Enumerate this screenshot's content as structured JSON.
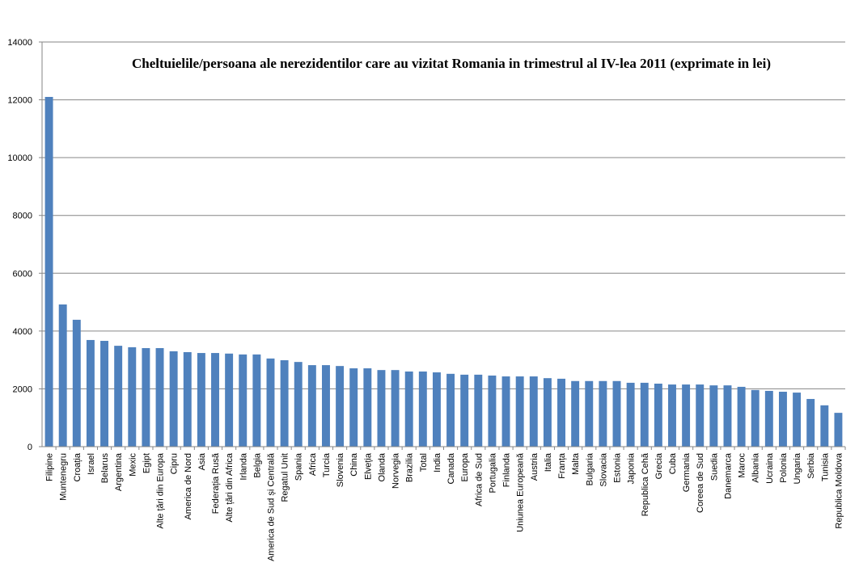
{
  "chart_data": {
    "type": "bar",
    "title": "Cheltuielile/persoana ale nerezidentilor care au vizitat Romania in trimestrul al IV-lea 2011 (exprimate in lei)",
    "xlabel": "",
    "ylabel": "",
    "ylim": [
      0,
      14000
    ],
    "yticks": [
      0,
      2000,
      4000,
      6000,
      8000,
      10000,
      12000,
      14000
    ],
    "grid": true,
    "legend": "none",
    "bar_color": "#4f81bd",
    "categories": [
      "Filipine",
      "Muntenegru",
      "Croația",
      "Israel",
      "Belarus",
      "Argentina",
      "Mexic",
      "Egipt",
      "Alte țări din Europa",
      "Cipru",
      "America de Nord",
      "Asia",
      "Federația Rusă",
      "Alte țări din Africa",
      "Irlanda",
      "Belgia",
      "America de Sud și Centrală",
      "Regatul Unit",
      "Spania",
      "Africa",
      "Turcia",
      "Slovenia",
      "China",
      "Elveția",
      "Olanda",
      "Norvegia",
      "Brazilia",
      "Total",
      "India",
      "Canada",
      "Europa",
      "Africa de Sud",
      "Portugalia",
      "Finlanda",
      "Uniunea Europeană",
      "Austria",
      "Italia",
      "Franța",
      "Malta",
      "Bulgaria",
      "Slovacia",
      "Estonia",
      "Japonia",
      "Republica Cehă",
      "Grecia",
      "Cuba",
      "Germania",
      "Coreea de Sud",
      "Suedia",
      "Danemarca",
      "Maroc",
      "Albania",
      "Ucraina",
      "Polonia",
      "Ungaria",
      "Serbia",
      "Tunisia",
      "Republica Moldova"
    ],
    "values": [
      12100,
      4920,
      4390,
      3690,
      3660,
      3490,
      3440,
      3410,
      3410,
      3300,
      3270,
      3240,
      3240,
      3220,
      3190,
      3190,
      3050,
      2990,
      2930,
      2820,
      2820,
      2790,
      2710,
      2710,
      2650,
      2650,
      2600,
      2600,
      2570,
      2520,
      2490,
      2490,
      2460,
      2430,
      2430,
      2430,
      2370,
      2350,
      2270,
      2270,
      2270,
      2270,
      2210,
      2210,
      2180,
      2150,
      2150,
      2150,
      2120,
      2120,
      2070,
      1960,
      1930,
      1900,
      1870,
      1650,
      1430,
      1170
    ]
  }
}
